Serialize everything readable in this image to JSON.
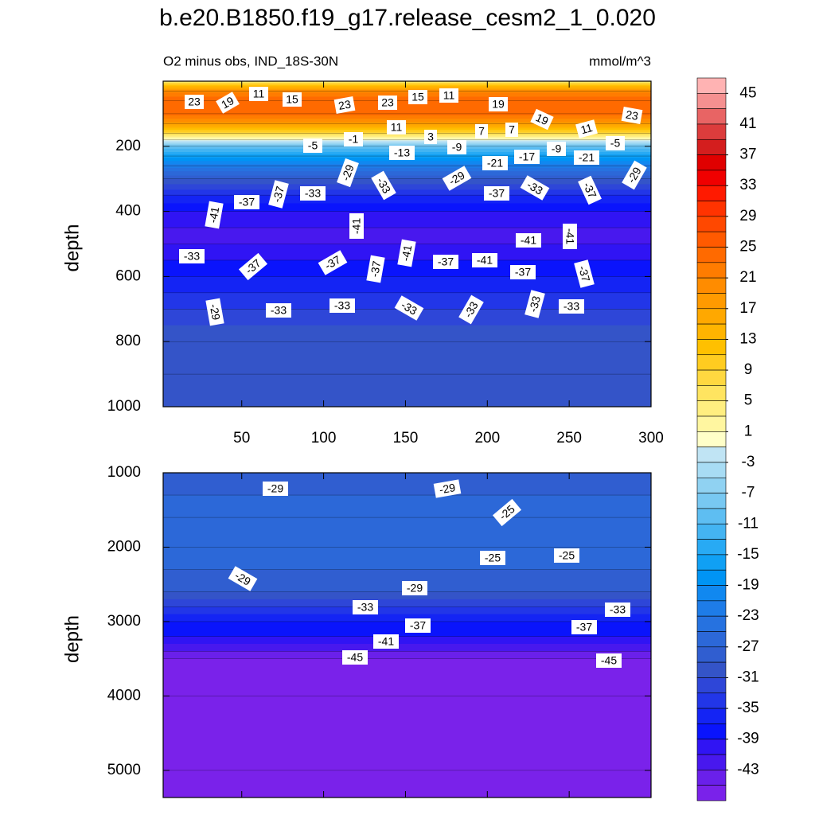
{
  "chart_data": {
    "type": "contour",
    "title": "b.e20.B1850.f19_g17.release_cesm2_1_0.020",
    "subtitle": "O2 minus obs, IND_18S-30N",
    "unit_label": "mmol/m^3",
    "panels": [
      {
        "ylabel": "depth",
        "xlim": [
          2,
          300
        ],
        "ylim": [
          0,
          1000
        ],
        "xticks": [
          50,
          100,
          150,
          200,
          250,
          300
        ],
        "xtick_labels": true,
        "yticks": [
          200,
          400,
          600,
          800,
          1000
        ],
        "profile": {
          "depth": [
            0,
            30,
            60,
            100,
            130,
            160,
            180,
            200,
            230,
            260,
            300,
            350,
            400,
            450,
            500,
            550,
            600,
            650,
            700,
            800,
            900,
            1000
          ],
          "values": [
            5,
            20,
            25,
            24,
            18,
            8,
            0,
            -9,
            -16,
            -22,
            -29,
            -35,
            -39,
            -41,
            -41,
            -39,
            -37,
            -35,
            -33,
            -29,
            -29,
            -29
          ]
        },
        "contour_labels": [
          23,
          19,
          11,
          15,
          23,
          23,
          15,
          11,
          19,
          19,
          23,
          11,
          3,
          7,
          7,
          11,
          -5,
          -1,
          -13,
          -9,
          -9,
          -5,
          -17,
          -21,
          -21,
          -29,
          -33,
          -29,
          -37,
          -33,
          -37,
          -29,
          -37,
          -37,
          -33,
          -41,
          -41,
          -41,
          -41,
          -33,
          -37,
          -37,
          -37,
          -41,
          -37,
          -41,
          -37,
          -37,
          -29,
          -33,
          -33,
          -33,
          -33,
          -33,
          -33
        ]
      },
      {
        "ylabel": "depth",
        "xlim": [
          2,
          300
        ],
        "ylim": [
          1000,
          5365
        ],
        "xticks": [
          50,
          100,
          150,
          200,
          250,
          300
        ],
        "xtick_labels": false,
        "yticks": [
          1000,
          2000,
          3000,
          4000,
          5000
        ],
        "profile": {
          "depth": [
            1000,
            1300,
            1600,
            2000,
            2300,
            2600,
            2800,
            3000,
            3200,
            3400,
            3500,
            4000,
            5000,
            5365
          ],
          "values": [
            -29,
            -27,
            -25,
            -25,
            -27,
            -29,
            -33,
            -37,
            -39,
            -43,
            -45,
            -45,
            -45,
            -45
          ]
        },
        "contour_labels": [
          -29,
          -29,
          -25,
          -25,
          -25,
          -29,
          -29,
          -33,
          -37,
          -33,
          -37,
          -41,
          -45,
          -45
        ]
      }
    ],
    "colorbar": {
      "lim": [
        -47,
        47
      ],
      "ticks": [
        45,
        41,
        37,
        33,
        29,
        25,
        21,
        17,
        13,
        9,
        5,
        1,
        -3,
        -7,
        -11,
        -15,
        -19,
        -23,
        -27,
        -31,
        -35,
        -39,
        -43
      ],
      "colors": [
        "#ffb3b3",
        "#f59090",
        "#e86464",
        "#dc3c3c",
        "#d41e1e",
        "#e00000",
        "#f00000",
        "#ff1a00",
        "#ff3300",
        "#ff4800",
        "#ff5a00",
        "#ff6a00",
        "#ff7c00",
        "#ff8c00",
        "#ff9a00",
        "#ffa800",
        "#ffb400",
        "#ffc000",
        "#ffcc20",
        "#ffd840",
        "#ffe460",
        "#ffee80",
        "#fff6a0",
        "#ffffc8",
        "#c0e4f4",
        "#a8dcf4",
        "#90d2f2",
        "#78c8f2",
        "#5ebef2",
        "#44b4f2",
        "#28aaf4",
        "#10a0f4",
        "#0094f4",
        "#1088f0",
        "#1e7ce8",
        "#2672e0",
        "#2c68d8",
        "#305ed0",
        "#3454c8",
        "#2e46d8",
        "#2236e8",
        "#1424f4",
        "#0a14fc",
        "#3014f4",
        "#4818ee",
        "#6a20ea",
        "#7a22ea"
      ]
    }
  }
}
